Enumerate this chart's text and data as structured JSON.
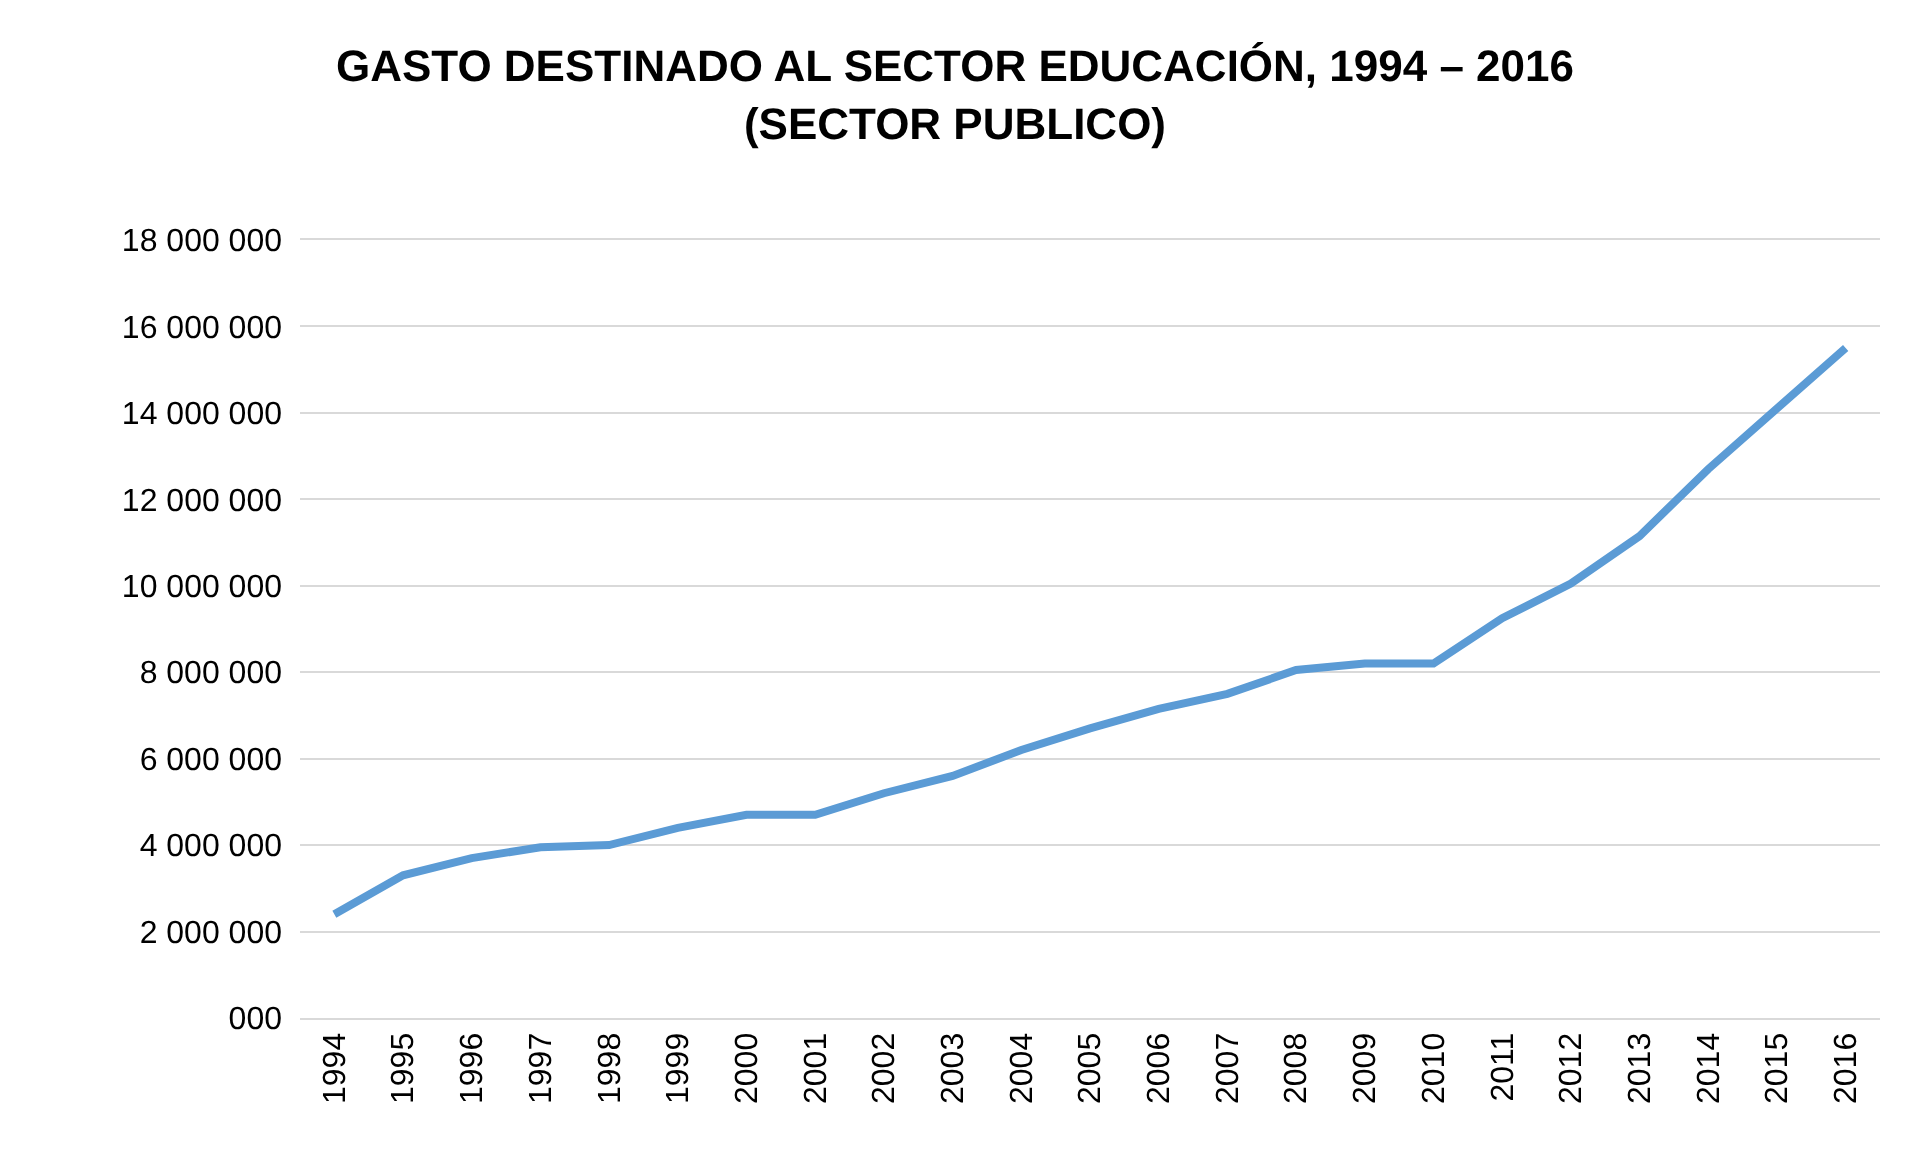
{
  "chart_data": {
    "type": "line",
    "title": "GASTO DESTINADO AL SECTOR EDUCACIÓN, 1994 – 2016\n(SECTOR PUBLICO)",
    "categories": [
      "1994",
      "1995",
      "1996",
      "1997",
      "1998",
      "1999",
      "2000",
      "2001",
      "2002",
      "2003",
      "2004",
      "2005",
      "2006",
      "2007",
      "2008",
      "2009",
      "2010",
      "2011",
      "2012",
      "2013",
      "2014",
      "2015",
      "2016"
    ],
    "series": [
      {
        "color": "#5b9bd5",
        "values": [
          2400000,
          3300000,
          3700000,
          3950000,
          4000000,
          4400000,
          4700000,
          4700000,
          5200000,
          5600000,
          6200000,
          6700000,
          7150000,
          7500000,
          8050000,
          8200000,
          8200000,
          9250000,
          10050000,
          11150000,
          12700000,
          14100000,
          15500000
        ]
      }
    ],
    "ylim": [
      0,
      18000000
    ],
    "yticks": [
      {
        "value": 0,
        "label": "000"
      },
      {
        "value": 2000000,
        "label": "2 000 000"
      },
      {
        "value": 4000000,
        "label": "4 000 000"
      },
      {
        "value": 6000000,
        "label": "6 000 000"
      },
      {
        "value": 8000000,
        "label": "8 000 000"
      },
      {
        "value": 10000000,
        "label": "10 000 000"
      },
      {
        "value": 12000000,
        "label": "12 000 000"
      },
      {
        "value": 14000000,
        "label": "14 000 000"
      },
      {
        "value": 16000000,
        "label": "16 000 000"
      },
      {
        "value": 18000000,
        "label": "18 000 000"
      }
    ],
    "grid": "y",
    "marker": "none",
    "line_style": "solid"
  }
}
